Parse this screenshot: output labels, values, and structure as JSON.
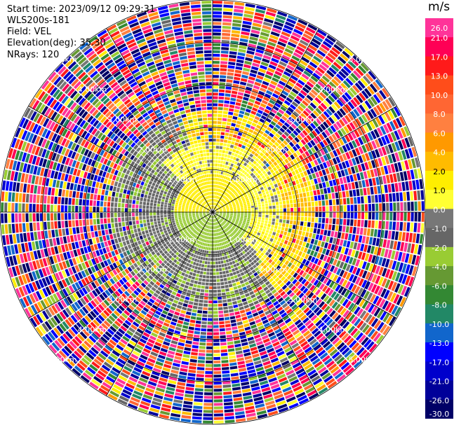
{
  "header": {
    "start_time": "Start time: 2023/09/12 09:29:31",
    "instrument": "WLS200s-181",
    "field": "Field: VEL",
    "elevation": "Elevation(deg): 35.30",
    "nrays": "NRays: 120"
  },
  "colorbar": {
    "unit": "m/s",
    "levels": [
      "26.0",
      "21.0",
      "17.0",
      "13.0",
      "10.0",
      "8.0",
      "6.0",
      "4.0",
      "2.0",
      "1.0",
      "0.0",
      "-1.0",
      "-2.0",
      "-4.0",
      "-6.0",
      "-8.0",
      "-10.0",
      "-13.0",
      "-17.0",
      "-21.0",
      "-26.0",
      "-30.0"
    ],
    "colors": [
      "#ff3399",
      "#ff0055",
      "#ff1a1a",
      "#ff4d1a",
      "#ff6633",
      "#ff8040",
      "#ff9900",
      "#ffbb00",
      "#ffee00",
      "#ffff33",
      "#777777",
      "#666666",
      "#99cc33",
      "#669933",
      "#338833",
      "#228866",
      "#1166cc",
      "#0000ff",
      "#0000cc",
      "#000099",
      "#000066"
    ]
  },
  "chart_data": {
    "type": "heatmap",
    "projection": "polar",
    "title": "",
    "field": "VEL",
    "unit": "m/s",
    "nrays": 120,
    "elevation_deg": 35.3,
    "range_ring_labels": [
      "1.00km",
      "2.00km",
      "3.00km",
      "4.00km",
      "5.00km"
    ],
    "value_range": [
      -30.0,
      26.0
    ]
  }
}
